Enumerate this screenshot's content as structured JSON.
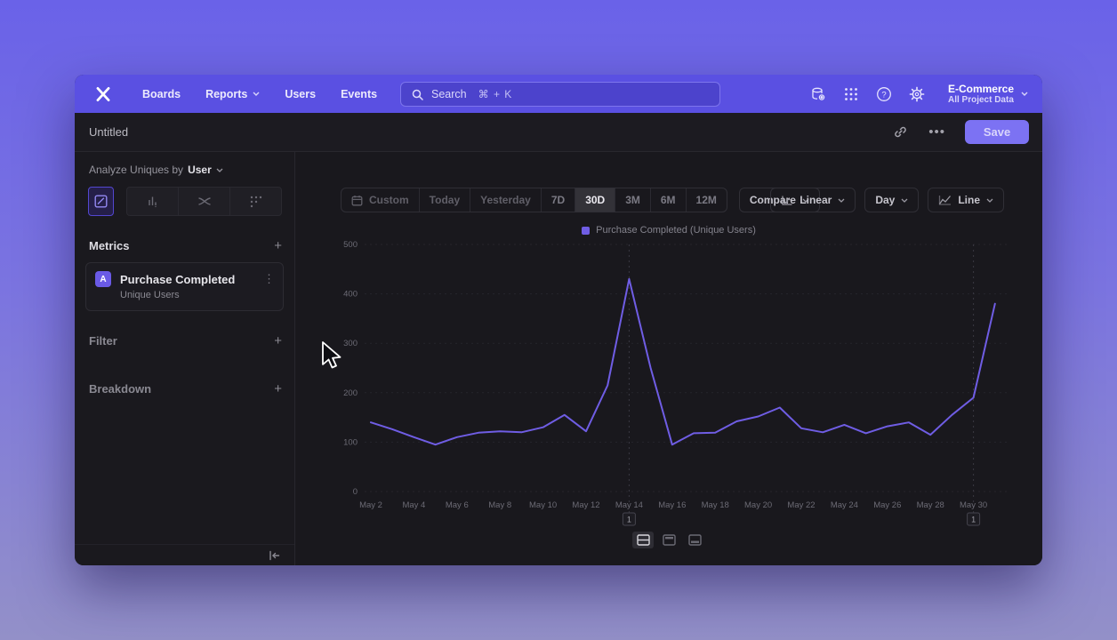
{
  "nav": {
    "items": [
      "Boards",
      "Reports",
      "Users",
      "Events"
    ],
    "search": {
      "placeholder": "Search",
      "shortcut": "⌘ + K"
    },
    "project": {
      "name": "E-Commerce",
      "scope": "All Project Data"
    }
  },
  "docbar": {
    "title": "Untitled",
    "more_label": "•••",
    "save_label": "Save"
  },
  "sidebar": {
    "analyze_prefix": "Analyze Uniques by",
    "analyze_entity": "User",
    "metrics_heading": "Metrics",
    "add_symbol": "+",
    "metric_card": {
      "badge": "A",
      "title": "Purchase Completed",
      "subtitle": "Unique Users",
      "kebab": "⋮"
    },
    "filter_heading": "Filter",
    "breakdown_heading": "Breakdown"
  },
  "toolbar": {
    "ranges": [
      "Custom",
      "Today",
      "Yesterday",
      "7D",
      "30D",
      "3M",
      "6M",
      "12M"
    ],
    "active_range": "30D",
    "compare_label": "Compare",
    "scale_label": "Linear",
    "interval_label": "Day",
    "chart_type_label": "Line"
  },
  "icons": {
    "logo": "mixpanel-x-glyph",
    "search": "magnifier",
    "data": "database-gear",
    "apps": "dots-grid-3x3",
    "help": "question-circle",
    "settings": "gear",
    "link": "chain-link",
    "insights-tab": "line-chart-in-box",
    "funnels-tab": "bar-chart",
    "flows-tab": "crossing-flows",
    "retention-tab": "dots-matrix",
    "collapse": "collapse-panel-left",
    "calendar": "calendar",
    "linear": "axis-steps",
    "line": "trend-line",
    "layout-split": "split-horizontal",
    "layout-chart": "bar-top-frame",
    "layout-table": "bar-bottom-frame"
  },
  "chart_data": {
    "type": "line",
    "title": "Purchase Completed (Unique Users)",
    "legend": [
      "Purchase Completed (Unique Users)"
    ],
    "legend_position": "top-center",
    "grid": "dashed-horizontal",
    "ylim": [
      0,
      500
    ],
    "yticks": [
      0,
      100,
      200,
      300,
      400,
      500
    ],
    "x_tick_every": 2,
    "x": [
      "May 2",
      "May 3",
      "May 4",
      "May 5",
      "May 6",
      "May 7",
      "May 8",
      "May 9",
      "May 10",
      "May 11",
      "May 12",
      "May 13",
      "May 14",
      "May 15",
      "May 16",
      "May 17",
      "May 18",
      "May 19",
      "May 20",
      "May 21",
      "May 22",
      "May 23",
      "May 24",
      "May 25",
      "May 26",
      "May 27",
      "May 28",
      "May 29",
      "May 30",
      "May 31"
    ],
    "series": [
      {
        "name": "Purchase Completed (Unique Users)",
        "color": "#6f5de4",
        "values": [
          140,
          126,
          110,
          95,
          110,
          119,
          122,
          120,
          130,
          155,
          122,
          215,
          430,
          250,
          95,
          118,
          119,
          142,
          152,
          170,
          128,
          120,
          135,
          118,
          132,
          140,
          115,
          155,
          190,
          380
        ]
      }
    ],
    "annotations": [
      {
        "x_label": "May 14",
        "badge": "1"
      },
      {
        "x_label": "May 30",
        "badge": "1"
      }
    ]
  }
}
